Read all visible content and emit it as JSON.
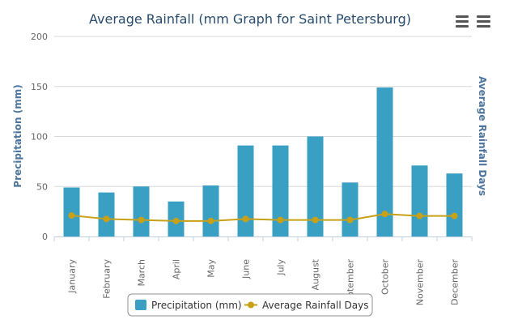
{
  "chart_data": {
    "type": "bar+line",
    "title": "Average Rainfall (mm Graph for Saint Petersburg)",
    "ylabel": "Precipitation (mm)",
    "y2label": "Average Rainfall Days",
    "ylim": [
      0,
      200
    ],
    "yticks": [
      "0",
      "50",
      "100",
      "150",
      "200"
    ],
    "categories": [
      "January",
      "February",
      "March",
      "April",
      "May",
      "June",
      "July",
      "August",
      "September",
      "October",
      "November",
      "December"
    ],
    "series": [
      {
        "name": "Precipitation (mm)",
        "type": "bar",
        "color": "#3aa0c3",
        "values": [
          49,
          44,
          50,
          35,
          51,
          91,
          91,
          100,
          54,
          149,
          71,
          63
        ]
      },
      {
        "name": "Average Rainfall Days",
        "type": "line",
        "color": "#c8a116",
        "values": [
          21,
          17.5,
          16.5,
          15.5,
          15.5,
          17.5,
          16.5,
          16.5,
          16.5,
          22.5,
          20.5,
          20.5
        ]
      }
    ],
    "legend_position": "bottom-center",
    "grid": true
  },
  "icons": {
    "menu_1": "hamburger-menu-icon",
    "menu_2": "hamburger-menu-icon"
  }
}
